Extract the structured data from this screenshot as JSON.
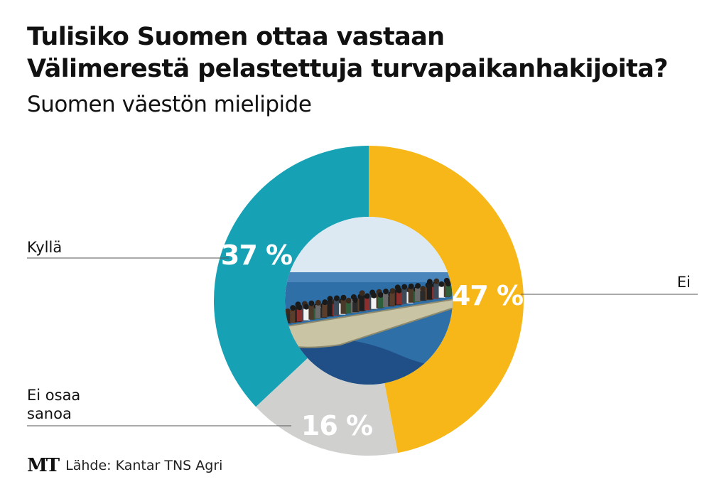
{
  "title": {
    "line1": "Tulisiko Suomen ottaa vastaan",
    "line2": "Välimerestä pelastettuja turvapaikanhakijoita?"
  },
  "subtitle": "Suomen väestön mielipide",
  "source": {
    "logo": "MT",
    "text": "Lähde: Kantar TNS Agri"
  },
  "colors": {
    "ei": "#F7B718",
    "kylla": "#16A2B4",
    "ei_osaa_sanoa": "#D0D0CF",
    "photo_sky": "#DCE9F3",
    "photo_sea": "#2E6FA8",
    "photo_boat": "#C9C4A4"
  },
  "center_image": {
    "icon": "migrant-boat-photo"
  },
  "chart_data": {
    "type": "pie",
    "variant": "donut",
    "slices": [
      {
        "label": "Ei",
        "value": 47,
        "value_label": "47 %",
        "color": "#F7B718"
      },
      {
        "label": "Ei osaa sanoa",
        "value": 16,
        "value_label": "16 %",
        "color": "#D0D0CF"
      },
      {
        "label": "Kyllä",
        "value": 37,
        "value_label": "37 %",
        "color": "#16A2B4"
      }
    ]
  }
}
